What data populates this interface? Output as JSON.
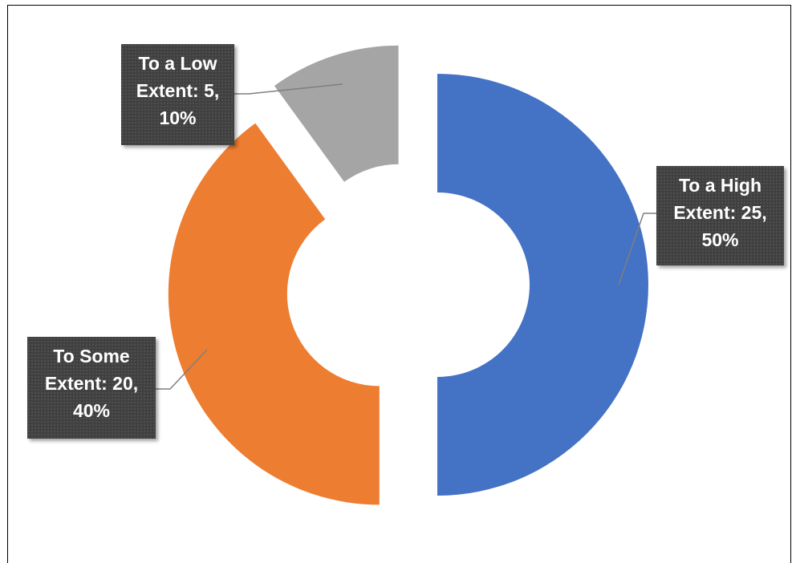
{
  "chart_data": {
    "type": "pie",
    "variant": "donut",
    "exploded": true,
    "title": "",
    "slices": [
      {
        "category": "To a High Extent",
        "value": 25,
        "percent": "50%",
        "color": "#4472C4"
      },
      {
        "category": "To Some Extent",
        "value": 20,
        "percent": "40%",
        "color": "#ED7D31"
      },
      {
        "category": "To a Low Extent",
        "value": 5,
        "percent": "10%",
        "color": "#A5A5A5"
      }
    ],
    "data_labels": [
      {
        "lines": [
          "To a High",
          "Extent: 25,",
          "50%"
        ]
      },
      {
        "lines": [
          "To Some",
          "Extent: 20,",
          "40%"
        ]
      },
      {
        "lines": [
          "To a Low",
          "Extent: 5,",
          "10%"
        ]
      }
    ],
    "legend": "none"
  }
}
